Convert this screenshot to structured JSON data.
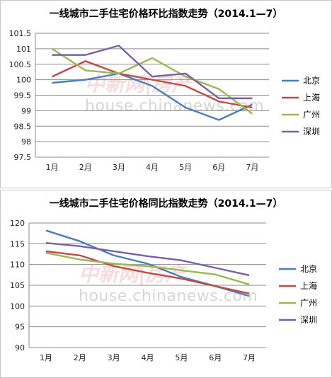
{
  "chart_data": [
    {
      "type": "line",
      "title": "一线城市二手住宅价格环比指数走势（2014.1—7）",
      "categories": [
        "1月",
        "2月",
        "3月",
        "4月",
        "5月",
        "6月",
        "7月"
      ],
      "ylim": [
        97.5,
        101.5
      ],
      "yticks": [
        "97.5",
        "98",
        "98.5",
        "99",
        "99.5",
        "100",
        "100.5",
        "101",
        "101.5"
      ],
      "grid": true,
      "legend": "right",
      "series": [
        {
          "name": "北京",
          "color": "#4a7ebb",
          "values": [
            99.9,
            100.0,
            100.2,
            99.8,
            99.1,
            98.7,
            99.2
          ]
        },
        {
          "name": "上海",
          "color": "#be4b48",
          "values": [
            100.1,
            100.6,
            100.2,
            100.0,
            99.8,
            99.3,
            99.1
          ]
        },
        {
          "name": "广州",
          "color": "#98b954",
          "values": [
            101.0,
            100.3,
            100.2,
            100.7,
            100.1,
            99.7,
            98.9
          ]
        },
        {
          "name": "深圳",
          "color": "#7d60a0",
          "values": [
            100.8,
            100.8,
            101.1,
            100.1,
            100.2,
            99.4,
            99.4
          ]
        }
      ]
    },
    {
      "type": "line",
      "title": "一线城市二手住宅价格同比指数走势（2014.1—7）",
      "categories": [
        "1月",
        "2月",
        "3月",
        "4月",
        "5月",
        "6月",
        "7月"
      ],
      "ylim": [
        90,
        120
      ],
      "yticks": [
        "90",
        "95",
        "100",
        "105",
        "110",
        "115",
        "120"
      ],
      "grid": true,
      "legend": "right",
      "series": [
        {
          "name": "北京",
          "color": "#4a7ebb",
          "values": [
            118.2,
            115.6,
            112.2,
            110.2,
            107.0,
            104.8,
            102.4
          ]
        },
        {
          "name": "上海",
          "color": "#be4b48",
          "values": [
            113.2,
            112.2,
            109.6,
            108.0,
            106.6,
            104.8,
            103.0
          ]
        },
        {
          "name": "广州",
          "color": "#98b954",
          "values": [
            112.8,
            111.2,
            110.2,
            109.6,
            108.6,
            107.6,
            105.2
          ]
        },
        {
          "name": "深圳",
          "color": "#7d60a0",
          "values": [
            115.2,
            114.4,
            113.2,
            112.0,
            111.0,
            109.2,
            107.4
          ]
        }
      ]
    }
  ],
  "watermark": {
    "cn": "中新网|房产",
    "en": "house.chinanews.com"
  }
}
